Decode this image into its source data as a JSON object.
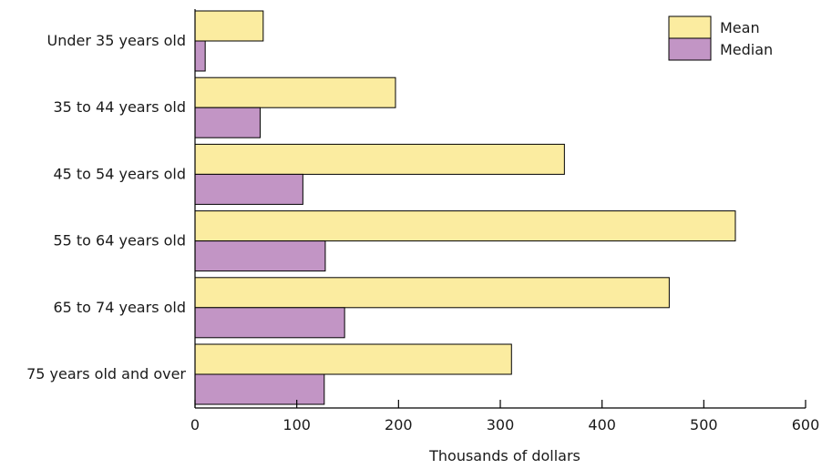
{
  "chart_data": {
    "type": "bar",
    "orientation": "horizontal",
    "categories": [
      "Under 35 years old",
      "35 to 44 years old",
      "45 to 54 years old",
      "55 to 64 years old",
      "65 to 74 years old",
      "75 years old and over"
    ],
    "series": [
      {
        "name": "Mean",
        "color": "#fbeca0",
        "values": [
          67,
          197,
          363,
          531,
          466,
          311
        ]
      },
      {
        "name": "Median",
        "color": "#c295c5",
        "values": [
          10,
          64,
          106,
          128,
          147,
          127
        ]
      }
    ],
    "xlabel": "Thousands of dollars",
    "xlim": [
      0,
      600
    ],
    "xticks": [
      "0",
      "100",
      "200",
      "300",
      "400",
      "500",
      "600"
    ],
    "grid": false,
    "legend_position": "top-right"
  }
}
